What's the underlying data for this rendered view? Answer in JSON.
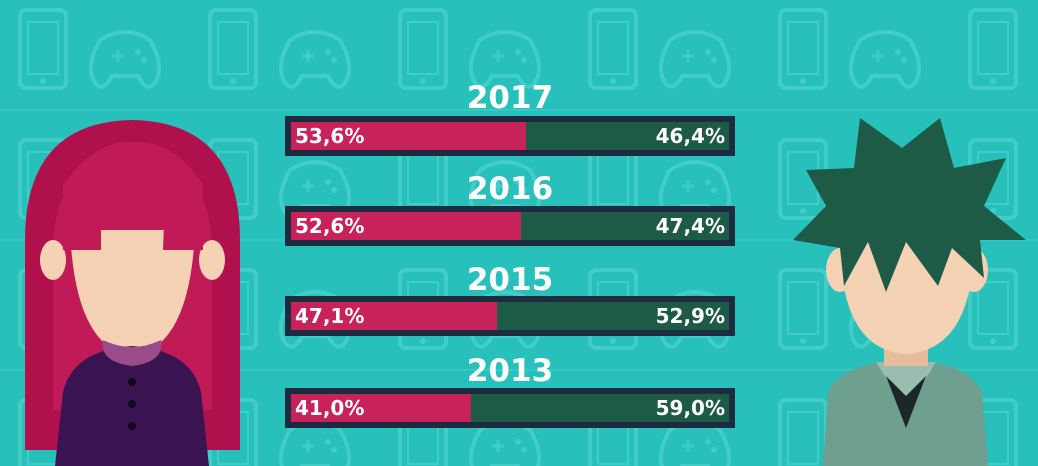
{
  "chart_data": {
    "type": "bar",
    "orientation": "horizontal",
    "stacked": true,
    "normalized_to": 100,
    "categories": [
      "2017",
      "2016",
      "2015",
      "2013"
    ],
    "series": [
      {
        "values": [
          53.6,
          52.6,
          47.1,
          41.0
        ],
        "labels": [
          "53,6%",
          "52,6%",
          "47,1%",
          "41,0%"
        ],
        "color": "#c72259"
      },
      {
        "values": [
          46.4,
          47.4,
          52.9,
          59.0
        ],
        "labels": [
          "46,4%",
          "47,4%",
          "52,9%",
          "59,0%"
        ],
        "color": "#1e5b46"
      }
    ],
    "grid": false,
    "legend": "none"
  },
  "colors": {
    "background": "#27c0bb",
    "bar_frame": "#1d2b3f",
    "text": "#ffffff"
  },
  "icons": {
    "left": "girl-avatar-icon",
    "right": "boy-avatar-icon",
    "background": "game-controller-and-phone-pattern"
  }
}
